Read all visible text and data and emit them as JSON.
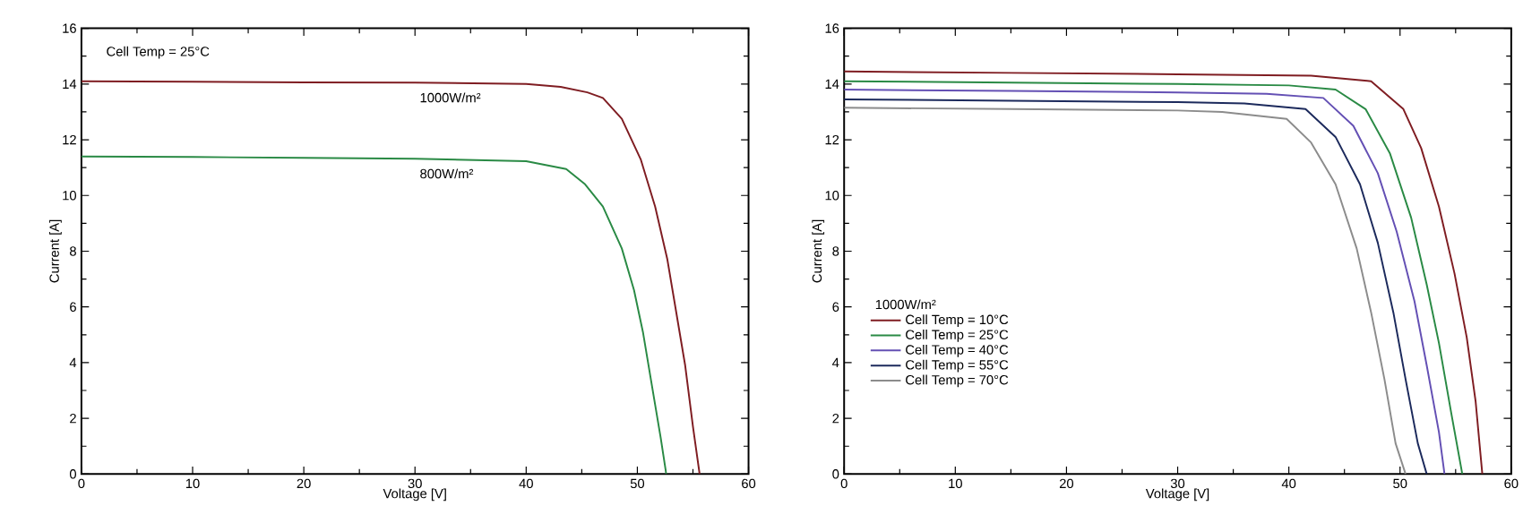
{
  "chart_data": [
    {
      "type": "line",
      "xlabel": "Voltage [V]",
      "ylabel": "Current [A]",
      "xlim": [
        0,
        60
      ],
      "ylim": [
        0,
        16
      ],
      "xticks": [
        0,
        10,
        20,
        30,
        40,
        50,
        60
      ],
      "yticks": [
        0,
        2,
        4,
        6,
        8,
        10,
        12,
        14,
        16
      ],
      "annotations": [
        "Cell Temp = 25°C"
      ],
      "series": [
        {
          "name": "1000W/m²",
          "color": "#7f1d22",
          "x": [
            0,
            10,
            20,
            30,
            40,
            43.1,
            45.5,
            46.9,
            48.6,
            50.3,
            51.6,
            52.7,
            53.5,
            54.3,
            55.0,
            55.6
          ],
          "values": [
            14.1,
            14.08,
            14.06,
            14.05,
            14.0,
            13.9,
            13.7,
            13.5,
            12.75,
            11.3,
            9.6,
            7.7,
            5.8,
            3.9,
            1.7,
            0
          ]
        },
        {
          "name": "800W/m²",
          "color": "#2a8a45",
          "x": [
            0,
            10,
            20,
            30,
            40,
            43.6,
            45.3,
            46.9,
            48.6,
            49.7,
            50.5,
            51.3,
            52.1,
            52.6
          ],
          "values": [
            11.4,
            11.38,
            11.35,
            11.32,
            11.23,
            10.95,
            10.4,
            9.6,
            8.1,
            6.6,
            5.1,
            3.2,
            1.3,
            0
          ]
        }
      ]
    },
    {
      "type": "line",
      "xlabel": "Voltage [V]",
      "ylabel": "Current [A]",
      "xlim": [
        0,
        60
      ],
      "ylim": [
        0,
        16
      ],
      "xticks": [
        0,
        10,
        20,
        30,
        40,
        50,
        60
      ],
      "yticks": [
        0,
        2,
        4,
        6,
        8,
        10,
        12,
        14,
        16
      ],
      "legend": "bottom left",
      "legend_title": "1000W/m²",
      "series": [
        {
          "name": "Cell Temp = 10°C",
          "color": "#7f1d22",
          "x": [
            0,
            15,
            30,
            42,
            47.4,
            50.3,
            51.9,
            53.5,
            54.9,
            56.0,
            56.8,
            57.4
          ],
          "values": [
            14.45,
            14.4,
            14.35,
            14.3,
            14.1,
            13.1,
            11.7,
            9.6,
            7.2,
            4.9,
            2.6,
            0
          ]
        },
        {
          "name": "Cell Temp = 25°C",
          "color": "#2a8a45",
          "x": [
            0,
            15,
            30,
            40,
            44.2,
            46.9,
            49.1,
            51.0,
            52.4,
            53.5,
            54.6,
            55.6
          ],
          "values": [
            14.1,
            14.05,
            14.0,
            13.95,
            13.8,
            13.1,
            11.5,
            9.2,
            6.8,
            4.7,
            2.2,
            0
          ]
        },
        {
          "name": "Cell Temp = 40°C",
          "color": "#6450b4",
          "x": [
            0,
            15,
            30,
            38,
            43.1,
            45.8,
            48.0,
            49.7,
            51.3,
            52.4,
            53.5,
            54.0
          ],
          "values": [
            13.8,
            13.75,
            13.7,
            13.65,
            13.5,
            12.5,
            10.8,
            8.7,
            6.2,
            3.9,
            1.5,
            0
          ]
        },
        {
          "name": "Cell Temp = 55°C",
          "color": "#1c2a5c",
          "x": [
            0,
            15,
            30,
            36,
            41.5,
            44.2,
            46.4,
            48.0,
            49.4,
            50.5,
            51.6,
            52.4
          ],
          "values": [
            13.45,
            13.4,
            13.35,
            13.3,
            13.1,
            12.1,
            10.4,
            8.3,
            5.8,
            3.4,
            1.1,
            0
          ]
        },
        {
          "name": "Cell Temp = 70°C",
          "color": "#8c8c8c",
          "x": [
            0,
            15,
            30,
            34,
            39.8,
            42.0,
            44.2,
            46.1,
            47.4,
            48.6,
            49.6,
            50.5
          ],
          "values": [
            13.15,
            13.1,
            13.05,
            13.0,
            12.75,
            11.9,
            10.4,
            8.1,
            5.8,
            3.4,
            1.1,
            0
          ]
        }
      ]
    }
  ]
}
